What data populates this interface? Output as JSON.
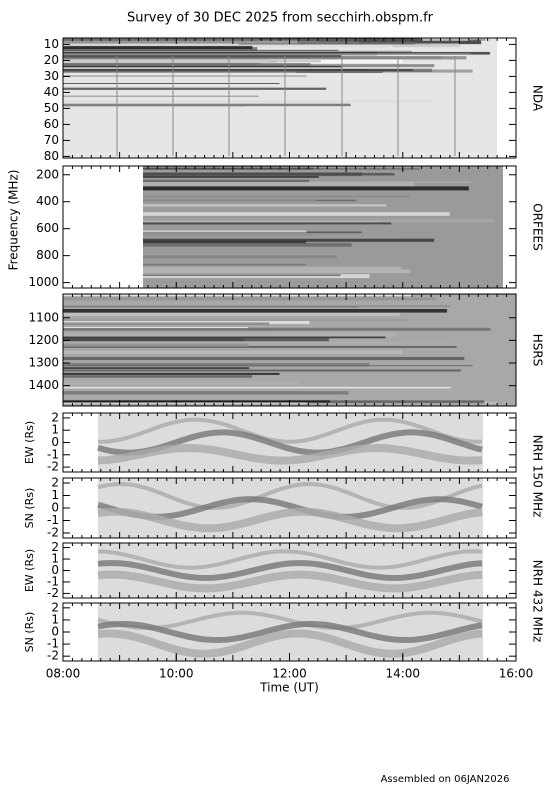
{
  "title": "Survey of 30 DEC 2025 from secchirh.obspm.fr",
  "footer": "Assembled on 06JAN2026",
  "group_labels": {
    "frequency": "Frequency (MHz)",
    "nrh150": "NRH 150 MHz",
    "nrh432": "NRH 432 MHz"
  },
  "chart_data": [
    {
      "type": "spectrogram",
      "instrument": "NDA",
      "ylim": [
        81,
        6
      ],
      "yticks": [
        10,
        20,
        30,
        40,
        50,
        60,
        70,
        80
      ]
    },
    {
      "type": "spectrogram",
      "instrument": "ORFEES",
      "ylim": [
        1040,
        135
      ],
      "yticks": [
        200,
        400,
        600,
        800,
        1000
      ]
    },
    {
      "type": "spectrogram",
      "instrument": "HSRS",
      "ylim": [
        1490,
        995
      ],
      "yticks": [
        1100,
        1200,
        1300,
        1400
      ]
    },
    {
      "type": "image",
      "ylabel": "EW (Rs)",
      "ylim": [
        -2.4,
        2.4
      ],
      "yticks": [
        -2,
        -1,
        0,
        1,
        2
      ]
    },
    {
      "type": "image",
      "ylabel": "SN (Rs)",
      "ylim": [
        -2.4,
        2.4
      ],
      "yticks": [
        -2,
        -1,
        0,
        1,
        2
      ]
    },
    {
      "type": "image",
      "ylabel": "EW (Rs)",
      "ylim": [
        -2.4,
        2.4
      ],
      "yticks": [
        -2,
        -1,
        0,
        1,
        2
      ]
    },
    {
      "type": "image",
      "ylabel": "SN (Rs)",
      "ylim": [
        -2.4,
        2.4
      ],
      "yticks": [
        -2,
        -1,
        0,
        1,
        2
      ],
      "xlabel": "Time (UT)",
      "xlim": [
        8,
        16
      ],
      "xticks": [
        {
          "value": 8,
          "label": "08:00"
        },
        {
          "value": 10,
          "label": "10:00"
        },
        {
          "value": 12,
          "label": "12:00"
        },
        {
          "value": 14,
          "label": "14:00"
        },
        {
          "value": 16,
          "label": "16:00"
        }
      ]
    }
  ]
}
